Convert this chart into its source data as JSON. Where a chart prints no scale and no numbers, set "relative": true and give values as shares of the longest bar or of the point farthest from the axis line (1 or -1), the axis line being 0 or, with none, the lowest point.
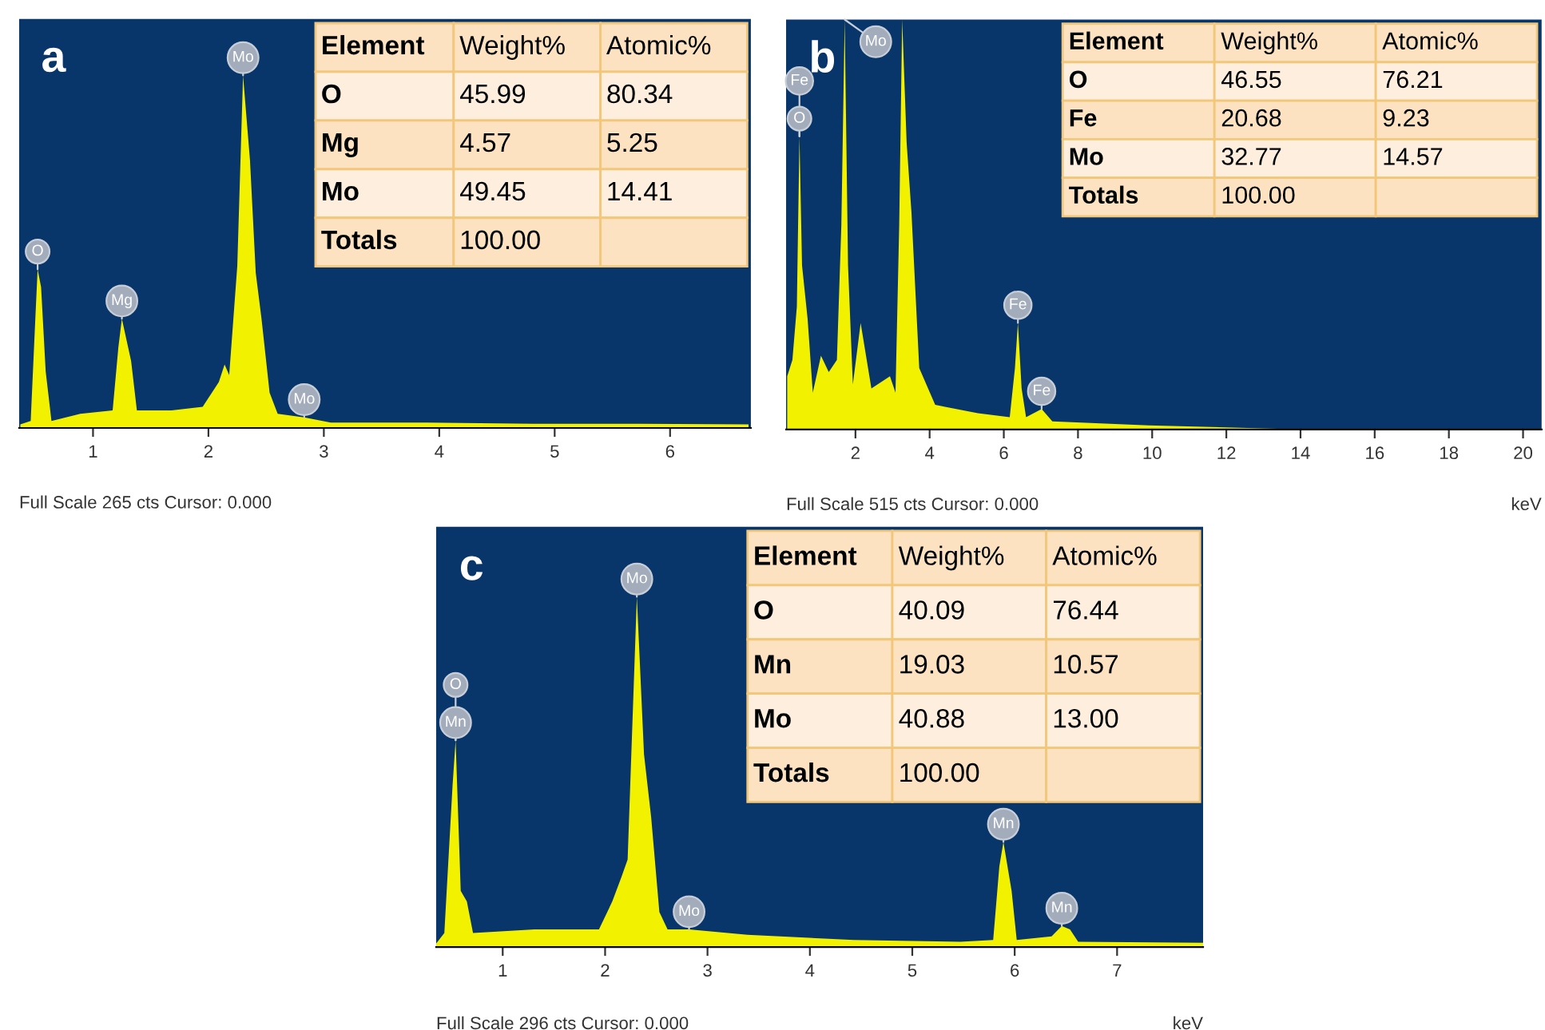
{
  "chart_data": [
    {
      "type": "area",
      "relative": true,
      "title": "a",
      "color": "#f2f200",
      "x": [
        0.37,
        0.46,
        0.5,
        0.52,
        0.55,
        0.59,
        0.64,
        0.89,
        1.17,
        1.22,
        1.25,
        1.33,
        1.38,
        1.68,
        1.95,
        2.09,
        2.14,
        2.18,
        2.25,
        2.3,
        2.36,
        2.41,
        2.46,
        2.53,
        2.6,
        2.83,
        3.06,
        3.89,
        4.81,
        5.73,
        6.68
      ],
      "values": [
        0.01,
        0.02,
        0.31,
        0.45,
        0.4,
        0.16,
        0.02,
        0.04,
        0.05,
        0.23,
        0.31,
        0.19,
        0.05,
        0.05,
        0.06,
        0.13,
        0.18,
        0.15,
        0.46,
        1.0,
        0.76,
        0.44,
        0.31,
        0.1,
        0.04,
        0.03,
        0.015,
        0.015,
        0.012,
        0.012,
        0.01
      ],
      "xlim": [
        0.36,
        6.7
      ],
      "xticks": [
        1,
        2,
        3,
        4,
        5,
        6
      ],
      "annotations": [
        "Full Scale 265 cts Cursor: 0.000",
        "Element",
        "Weight%",
        "Atomic%",
        "O",
        "45.99",
        "80.34",
        "Mg",
        "4.57",
        "5.25",
        "Mo",
        "49.45",
        "14.41",
        "Totals",
        "100.00",
        {
          "text": "O",
          "x": 0.52,
          "y": 0.45
        },
        {
          "text": "Mg",
          "x": 1.25,
          "y": 0.31
        },
        {
          "text": "Mo",
          "x": 2.3,
          "y": 1.0
        },
        {
          "text": "Mo",
          "x": 2.83,
          "y": 0.03
        }
      ]
    },
    {
      "type": "area",
      "relative": true,
      "title": "b",
      "color": "#f2f200",
      "xlabel": "keV",
      "x": [
        0.16,
        0.3,
        0.42,
        0.49,
        0.56,
        0.71,
        0.85,
        1.07,
        1.28,
        1.5,
        1.62,
        1.71,
        1.8,
        1.93,
        2.14,
        2.43,
        2.93,
        3.08,
        3.18,
        3.26,
        3.38,
        3.51,
        3.72,
        4.15,
        5.3,
        6.16,
        6.3,
        6.38,
        6.48,
        6.6,
        7.02,
        7.31,
        9.9,
        14.2,
        20.5
      ],
      "values": [
        0.13,
        0.17,
        0.3,
        0.715,
        0.4,
        0.27,
        0.09,
        0.18,
        0.14,
        0.17,
        0.5,
        1.0,
        0.4,
        0.11,
        0.26,
        0.1,
        0.13,
        0.09,
        0.5,
        1.0,
        0.7,
        0.53,
        0.15,
        0.06,
        0.04,
        0.03,
        0.15,
        0.26,
        0.1,
        0.03,
        0.05,
        0.02,
        0.01,
        0.0,
        0.0
      ],
      "xlim": [
        0.13,
        20.5
      ],
      "xticks": [
        2,
        4,
        6,
        8,
        10,
        12,
        14,
        16,
        18,
        20
      ],
      "annotations": [
        "Full Scale 515 cts Cursor: 0.000",
        "Element",
        "Weight%",
        "Atomic%",
        "O",
        "46.55",
        "76.21",
        "Fe",
        "20.68",
        "9.23",
        "Mo",
        "32.77",
        "14.57",
        "Totals",
        "100.00",
        {
          "text": "O",
          "x": 0.49,
          "y": 0.715
        },
        {
          "text": "Fe",
          "x": 0.49,
          "y": 0.715
        },
        {
          "text": "Mo",
          "x": 1.71,
          "y": 1.0
        },
        {
          "text": "Fe",
          "x": 6.38,
          "y": 0.26
        },
        {
          "text": "Fe",
          "x": 7.02,
          "y": 0.05
        }
      ]
    },
    {
      "type": "area",
      "relative": true,
      "title": "c",
      "color": "#f2f200",
      "xlabel": "keV",
      "x": [
        0.35,
        0.43,
        0.51,
        0.54,
        0.59,
        0.65,
        0.71,
        1.31,
        1.94,
        2.07,
        2.16,
        2.22,
        2.31,
        2.38,
        2.45,
        2.53,
        2.61,
        2.82,
        3.39,
        4.43,
        5.47,
        5.79,
        5.85,
        5.89,
        5.97,
        6.02,
        6.36,
        6.46,
        6.54,
        6.62,
        7.84
      ],
      "values": [
        0.01,
        0.04,
        0.46,
        0.59,
        0.16,
        0.13,
        0.04,
        0.05,
        0.05,
        0.13,
        0.2,
        0.25,
        1.0,
        0.55,
        0.37,
        0.1,
        0.05,
        0.05,
        0.035,
        0.02,
        0.015,
        0.02,
        0.23,
        0.3,
        0.16,
        0.02,
        0.03,
        0.06,
        0.05,
        0.015,
        0.012
      ],
      "xlim": [
        0.35,
        7.84
      ],
      "xticks": [
        1,
        2,
        3,
        4,
        5,
        6,
        7
      ],
      "annotations": [
        "Full Scale 296 cts Cursor: 0.000",
        "Element",
        "Weight%",
        "Atomic%",
        "O",
        "40.09",
        "76.44",
        "Mn",
        "19.03",
        "10.57",
        "Mo",
        "40.88",
        "13.00",
        "Totals",
        "100.00",
        {
          "text": "Mn",
          "x": 0.54,
          "y": 0.59
        },
        {
          "text": "O",
          "x": 0.54,
          "y": 0.59
        },
        {
          "text": "Mo",
          "x": 2.31,
          "y": 1.0
        },
        {
          "text": "Mo",
          "x": 2.82,
          "y": 0.05
        },
        {
          "text": "Mn",
          "x": 5.89,
          "y": 0.3
        },
        {
          "text": "Mn",
          "x": 6.46,
          "y": 0.06
        }
      ]
    }
  ]
}
